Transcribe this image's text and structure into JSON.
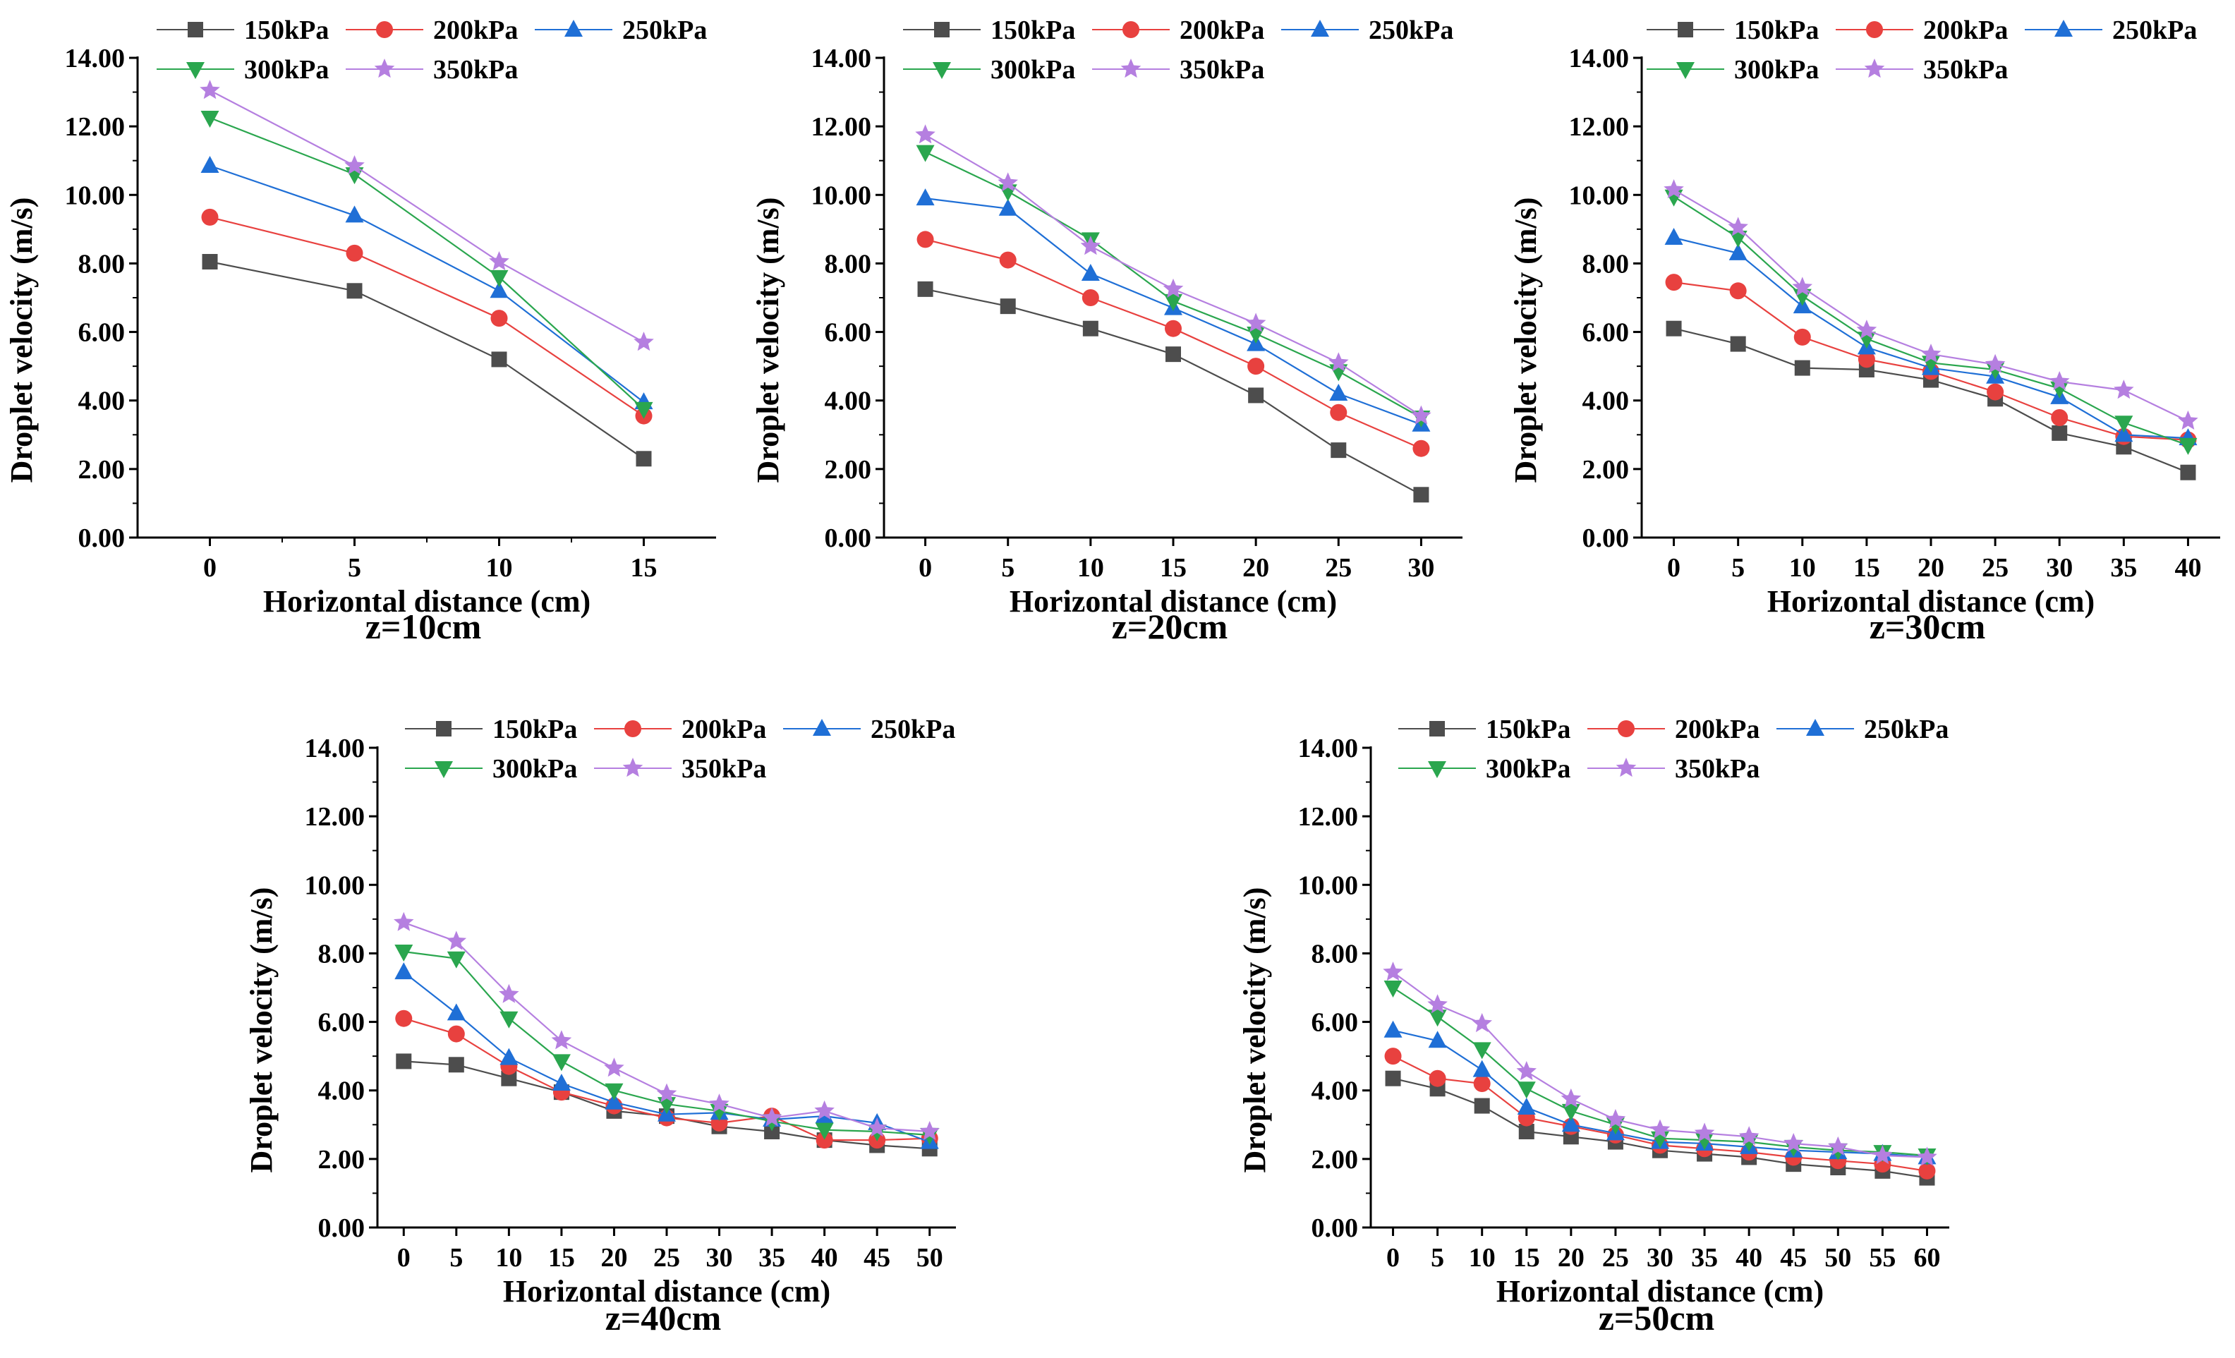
{
  "chart_data": [
    {
      "type": "line",
      "caption": "z=10cm",
      "xlabel": "Horizontal distance (cm)",
      "ylabel": "Droplet velocity (m/s)",
      "ylim": [
        0,
        14
      ],
      "yticks": [
        "0.00",
        "2.00",
        "4.00",
        "6.00",
        "8.00",
        "10.00",
        "12.00",
        "14.00"
      ],
      "x": [
        0,
        5,
        10,
        15
      ],
      "xlim": [
        -2.5,
        17.5
      ],
      "series": [
        {
          "name": "150kPa",
          "values": [
            8.05,
            7.2,
            5.2,
            2.3
          ]
        },
        {
          "name": "200kPa",
          "values": [
            9.35,
            8.3,
            6.4,
            3.55
          ]
        },
        {
          "name": "250kPa",
          "values": [
            10.85,
            9.4,
            7.2,
            3.95
          ]
        },
        {
          "name": "300kPa",
          "values": [
            12.25,
            10.6,
            7.6,
            3.75
          ]
        },
        {
          "name": "350kPa",
          "values": [
            13.05,
            10.85,
            8.05,
            5.7
          ]
        }
      ]
    },
    {
      "type": "line",
      "caption": "z=20cm",
      "xlabel": "Horizontal distance (cm)",
      "ylabel": "Droplet velocity (m/s)",
      "ylim": [
        0,
        14
      ],
      "yticks": [
        "0.00",
        "2.00",
        "4.00",
        "6.00",
        "8.00",
        "10.00",
        "12.00",
        "14.00"
      ],
      "x": [
        0,
        5,
        10,
        15,
        20,
        25,
        30
      ],
      "xlim": [
        -2.5,
        32.5
      ],
      "series": [
        {
          "name": "150kPa",
          "values": [
            7.25,
            6.75,
            6.1,
            5.35,
            4.15,
            2.55,
            1.25
          ]
        },
        {
          "name": "200kPa",
          "values": [
            8.7,
            8.1,
            7.0,
            6.1,
            5.0,
            3.65,
            2.6
          ]
        },
        {
          "name": "250kPa",
          "values": [
            9.9,
            9.6,
            7.7,
            6.7,
            5.65,
            4.2,
            3.3
          ]
        },
        {
          "name": "300kPa",
          "values": [
            11.25,
            10.1,
            8.7,
            6.9,
            5.95,
            4.85,
            3.5
          ]
        },
        {
          "name": "350kPa",
          "values": [
            11.75,
            10.35,
            8.5,
            7.25,
            6.25,
            5.1,
            3.55
          ]
        }
      ]
    },
    {
      "type": "line",
      "caption": "z=30cm",
      "xlabel": "Horizontal distance (cm)",
      "ylabel": "Droplet velocity (m/s)",
      "ylim": [
        0,
        14
      ],
      "yticks": [
        "0.00",
        "2.00",
        "4.00",
        "6.00",
        "8.00",
        "10.00",
        "12.00",
        "14.00"
      ],
      "x": [
        0,
        5,
        10,
        15,
        20,
        25,
        30,
        35,
        40
      ],
      "xlim": [
        -2.5,
        42.5
      ],
      "series": [
        {
          "name": "150kPa",
          "values": [
            6.1,
            5.65,
            4.95,
            4.9,
            4.6,
            4.05,
            3.05,
            2.65,
            1.9
          ]
        },
        {
          "name": "200kPa",
          "values": [
            7.45,
            7.2,
            5.85,
            5.2,
            4.85,
            4.25,
            3.5,
            2.95,
            2.85
          ]
        },
        {
          "name": "250kPa",
          "values": [
            8.75,
            8.3,
            6.75,
            5.55,
            4.95,
            4.7,
            4.1,
            3.0,
            2.9
          ]
        },
        {
          "name": "300kPa",
          "values": [
            9.95,
            8.75,
            7.05,
            5.8,
            5.1,
            4.9,
            4.35,
            3.35,
            2.7
          ]
        },
        {
          "name": "350kPa",
          "values": [
            10.15,
            9.05,
            7.3,
            6.05,
            5.35,
            5.05,
            4.55,
            4.3,
            3.4
          ]
        }
      ]
    },
    {
      "type": "line",
      "caption": "z=40cm",
      "xlabel": "Horizontal distance (cm)",
      "ylabel": "Droplet velocity (m/s)",
      "ylim": [
        0,
        14
      ],
      "yticks": [
        "0.00",
        "2.00",
        "4.00",
        "6.00",
        "8.00",
        "10.00",
        "12.00",
        "14.00"
      ],
      "x": [
        0,
        5,
        10,
        15,
        20,
        25,
        30,
        35,
        40,
        45,
        50
      ],
      "xlim": [
        -2.5,
        52.5
      ],
      "series": [
        {
          "name": "150kPa",
          "values": [
            4.85,
            4.75,
            4.35,
            3.95,
            3.4,
            3.25,
            2.95,
            2.8,
            2.55,
            2.4,
            2.3
          ]
        },
        {
          "name": "200kPa",
          "values": [
            6.1,
            5.65,
            4.7,
            3.95,
            3.55,
            3.2,
            3.05,
            3.25,
            2.55,
            2.55,
            2.6
          ]
        },
        {
          "name": "250kPa",
          "values": [
            7.45,
            6.25,
            4.95,
            4.2,
            3.65,
            3.3,
            3.35,
            3.15,
            3.25,
            3.05,
            2.5
          ]
        },
        {
          "name": "300kPa",
          "values": [
            8.05,
            7.85,
            6.1,
            4.85,
            4.0,
            3.6,
            3.4,
            3.1,
            2.85,
            2.8,
            2.7
          ]
        },
        {
          "name": "350kPa",
          "values": [
            8.9,
            8.35,
            6.8,
            5.45,
            4.65,
            3.9,
            3.6,
            3.2,
            3.4,
            2.9,
            2.8
          ]
        }
      ]
    },
    {
      "type": "line",
      "caption": "z=50cm",
      "xlabel": "Horizontal distance (cm)",
      "ylabel": "Droplet velocity (m/s)",
      "ylim": [
        0,
        14
      ],
      "yticks": [
        "0.00",
        "2.00",
        "4.00",
        "6.00",
        "8.00",
        "10.00",
        "12.00",
        "14.00"
      ],
      "x": [
        0,
        5,
        10,
        15,
        20,
        25,
        30,
        35,
        40,
        45,
        50,
        55,
        60
      ],
      "xlim": [
        -2.5,
        62.5
      ],
      "series": [
        {
          "name": "150kPa",
          "values": [
            4.35,
            4.05,
            3.55,
            2.8,
            2.65,
            2.5,
            2.25,
            2.15,
            2.05,
            1.85,
            1.75,
            1.65,
            1.45
          ]
        },
        {
          "name": "200kPa",
          "values": [
            5.0,
            4.35,
            4.2,
            3.2,
            2.95,
            2.7,
            2.4,
            2.3,
            2.2,
            2.05,
            1.95,
            1.85,
            1.65
          ]
        },
        {
          "name": "250kPa",
          "values": [
            5.75,
            5.45,
            4.6,
            3.5,
            3.0,
            2.75,
            2.5,
            2.45,
            2.35,
            2.25,
            2.2,
            2.15,
            2.05
          ]
        },
        {
          "name": "300kPa",
          "values": [
            7.0,
            6.15,
            5.2,
            4.05,
            3.4,
            3.0,
            2.6,
            2.55,
            2.5,
            2.35,
            2.25,
            2.2,
            2.1
          ]
        },
        {
          "name": "350kPa",
          "values": [
            7.45,
            6.5,
            5.95,
            4.55,
            3.75,
            3.15,
            2.85,
            2.75,
            2.65,
            2.45,
            2.35,
            2.1,
            2.05
          ]
        }
      ]
    }
  ],
  "series_style": [
    {
      "name": "150kPa",
      "color": "#4d4d4d",
      "marker": "square"
    },
    {
      "name": "200kPa",
      "color": "#e8413f",
      "marker": "circle"
    },
    {
      "name": "250kPa",
      "color": "#1f6fd6",
      "marker": "triangle-up"
    },
    {
      "name": "300kPa",
      "color": "#2aa64e",
      "marker": "triangle-down"
    },
    {
      "name": "350kPa",
      "color": "#b57fe0",
      "marker": "star"
    }
  ]
}
